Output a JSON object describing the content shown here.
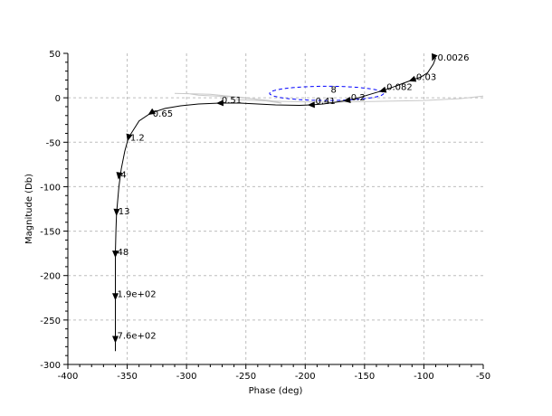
{
  "chart_data": {
    "type": "line",
    "title": "",
    "xlabel": "Phase (deg)",
    "ylabel": "Magnitude (Db)",
    "xlim": [
      -400,
      -50
    ],
    "ylim": [
      -300,
      50
    ],
    "xticks": [
      -400,
      -350,
      -300,
      -250,
      -200,
      -150,
      -100,
      -50
    ],
    "yticks": [
      -300,
      -250,
      -200,
      -150,
      -100,
      -50,
      0,
      50
    ],
    "xtick_labels": [
      "-400",
      "-350",
      "-300",
      "-250",
      "-200",
      "-150",
      "-100",
      "-50"
    ],
    "ytick_labels": [
      "-300",
      "-250",
      "-200",
      "-150",
      "-100",
      "-50",
      "0",
      "50"
    ],
    "grid": true,
    "grid_style": "dashed",
    "series": [
      {
        "color": "#000000",
        "x": [
          -90,
          -92,
          -97,
          -103,
          -110,
          -118,
          -126,
          -135,
          -145,
          -155,
          -165,
          -175,
          -185,
          -195,
          -205,
          -215,
          -225,
          -240,
          -255,
          -272,
          -290,
          -305,
          -318,
          -330,
          -340,
          -349,
          -352,
          -355,
          -357,
          -359,
          -359.5,
          -360,
          -360,
          -360,
          -360,
          -360
        ],
        "y": [
          45,
          38,
          28,
          23,
          20,
          16,
          12,
          8,
          4,
          0,
          -3,
          -5,
          -7,
          -8,
          -8.5,
          -8.3,
          -8,
          -7,
          -6,
          -6,
          -7,
          -9,
          -12,
          -17,
          -26,
          -45,
          -60,
          -80,
          -100,
          -130,
          -150,
          -175,
          -200,
          -225,
          -270,
          -285
        ]
      },
      {
        "color": "#c8c8c8",
        "x": [
          -310,
          -280,
          -250,
          -230,
          -220,
          -230,
          -260,
          -290,
          -300
        ],
        "y": [
          5,
          4,
          0,
          -4,
          -6,
          -3,
          1,
          3,
          5
        ]
      },
      {
        "color": "#c8c8c8",
        "x": [
          -260,
          -220,
          -180,
          -140,
          -100,
          -70,
          -50
        ],
        "y": [
          -2,
          -4,
          -5,
          -4,
          -3,
          -1,
          2
        ]
      }
    ],
    "ellipse": {
      "color": "#0000ff",
      "center": [
        -182,
        5
      ],
      "rx": 48,
      "ry": 8
    },
    "annotations": [
      {
        "text": "0.0026",
        "x": -90,
        "y": 46
      },
      {
        "text": "0.03",
        "x": -108,
        "y": 24
      },
      {
        "text": "0.082",
        "x": -133,
        "y": 13
      },
      {
        "text": "0.2",
        "x": -163,
        "y": 1
      },
      {
        "text": "0.41",
        "x": -193,
        "y": -3
      },
      {
        "text": "8",
        "x": -180,
        "y": 10
      },
      {
        "text": "0.51",
        "x": -272,
        "y": -2
      },
      {
        "text": "0.65",
        "x": -330,
        "y": -17
      },
      {
        "text": "1.2",
        "x": -349,
        "y": -44
      },
      {
        "text": "4",
        "x": -357,
        "y": -86
      },
      {
        "text": "13",
        "x": -359,
        "y": -127
      },
      {
        "text": "48",
        "x": -360,
        "y": -173
      },
      {
        "text": "1.9e+02",
        "x": -360,
        "y": -220
      },
      {
        "text": "7.6e+02",
        "x": -360,
        "y": -267
      }
    ],
    "arrow_points": [
      [
        -92,
        45
      ],
      [
        -110,
        20
      ],
      [
        -135,
        8
      ],
      [
        -165,
        -3
      ],
      [
        -195,
        -8
      ],
      [
        -272,
        -6
      ],
      [
        -330,
        -17
      ],
      [
        -349,
        -45
      ],
      [
        -357,
        -88
      ],
      [
        -359,
        -129
      ],
      [
        -360,
        -176
      ],
      [
        -360,
        -224
      ],
      [
        -360,
        -272
      ]
    ]
  }
}
